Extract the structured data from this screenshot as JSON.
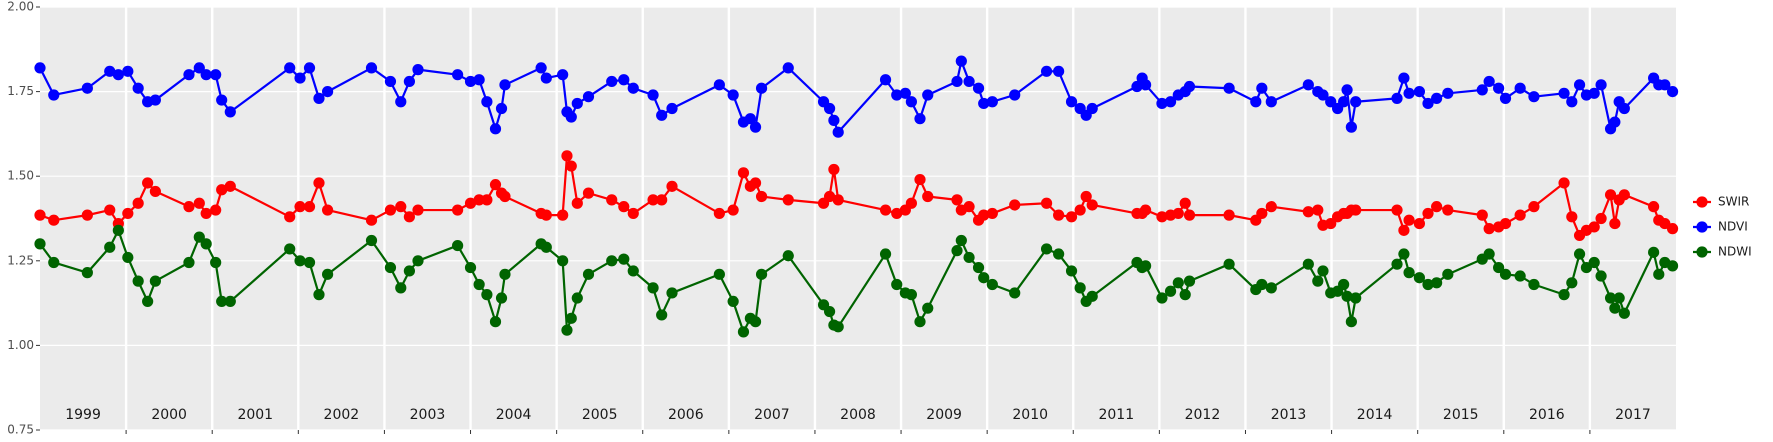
{
  "chart_data": {
    "type": "line",
    "xlim": [
      1999,
      2018
    ],
    "xticks": [
      2000,
      2001,
      2002,
      2003,
      2004,
      2005,
      2006,
      2007,
      2008,
      2009,
      2010,
      2011,
      2012,
      2013,
      2014,
      2015,
      2016,
      2017
    ],
    "categories": [
      "1999",
      "2000",
      "2001",
      "2002",
      "2003",
      "2004",
      "2005",
      "2006",
      "2007",
      "2008",
      "2009",
      "2010",
      "2011",
      "2012",
      "2013",
      "2014",
      "2015",
      "2016",
      "2017"
    ],
    "ylim": [
      0.75,
      2.0
    ],
    "yticks": [
      {
        "value": 0.75,
        "label": "0.75"
      },
      {
        "value": 1.0,
        "label": "1.00"
      },
      {
        "value": 1.25,
        "label": "1.25"
      },
      {
        "value": 1.5,
        "label": "1.50"
      },
      {
        "value": 1.75,
        "label": "1.75"
      },
      {
        "value": 2.0,
        "label": "2.00"
      }
    ],
    "grid": true,
    "legend": "right",
    "x": [
      1999.0,
      1999.16,
      1999.55,
      1999.81,
      1999.91,
      2000.02,
      2000.14,
      2000.25,
      2000.34,
      2000.73,
      2000.85,
      2000.93,
      2001.04,
      2001.11,
      2001.21,
      2001.9,
      2002.02,
      2002.13,
      2002.24,
      2002.34,
      2002.85,
      2003.07,
      2003.19,
      2003.29,
      2003.39,
      2003.85,
      2004.0,
      2004.1,
      2004.19,
      2004.29,
      2004.36,
      2004.4,
      2004.82,
      2004.88,
      2005.07,
      2005.12,
      2005.17,
      2005.24,
      2005.37,
      2005.64,
      2005.78,
      2005.89,
      2006.12,
      2006.22,
      2006.34,
      2006.89,
      2007.05,
      2007.17,
      2007.25,
      2007.31,
      2007.38,
      2007.69,
      2008.1,
      2008.17,
      2008.22,
      2008.27,
      2008.82,
      2008.95,
      2009.05,
      2009.12,
      2009.22,
      2009.31,
      2009.65,
      2009.7,
      2009.79,
      2009.9,
      2009.96,
      2010.06,
      2010.32,
      2010.69,
      2010.83,
      2010.98,
      2011.08,
      2011.15,
      2011.22,
      2011.74,
      2011.8,
      2011.84,
      2012.03,
      2012.13,
      2012.22,
      2012.3,
      2012.35,
      2012.81,
      2013.12,
      2013.19,
      2013.3,
      2013.73,
      2013.84,
      2013.9,
      2013.99,
      2014.07,
      2014.14,
      2014.18,
      2014.23,
      2014.28,
      2014.76,
      2014.84,
      2014.9,
      2015.02,
      2015.12,
      2015.22,
      2015.35,
      2015.75,
      2015.83,
      2015.94,
      2016.02,
      2016.19,
      2016.35,
      2016.7,
      2016.79,
      2016.88,
      2016.96,
      2017.05,
      2017.13,
      2017.24,
      2017.29,
      2017.34,
      2017.4,
      2017.74,
      2017.8,
      2017.87,
      2017.96
    ],
    "series": [
      {
        "name": "SWIR",
        "color": "#ff0000",
        "values": [
          1.385,
          1.37,
          1.385,
          1.4,
          1.36,
          1.39,
          1.42,
          1.48,
          1.455,
          1.41,
          1.42,
          1.39,
          1.4,
          1.46,
          1.47,
          1.38,
          1.41,
          1.41,
          1.48,
          1.4,
          1.37,
          1.4,
          1.41,
          1.38,
          1.4,
          1.4,
          1.42,
          1.43,
          1.43,
          1.475,
          1.45,
          1.44,
          1.39,
          1.385,
          1.385,
          1.56,
          1.53,
          1.42,
          1.45,
          1.43,
          1.41,
          1.39,
          1.43,
          1.43,
          1.47,
          1.39,
          1.4,
          1.51,
          1.47,
          1.48,
          1.44,
          1.43,
          1.42,
          1.44,
          1.52,
          1.43,
          1.4,
          1.39,
          1.4,
          1.42,
          1.49,
          1.44,
          1.43,
          1.4,
          1.41,
          1.37,
          1.385,
          1.39,
          1.415,
          1.42,
          1.385,
          1.38,
          1.4,
          1.44,
          1.415,
          1.39,
          1.39,
          1.4,
          1.38,
          1.385,
          1.39,
          1.42,
          1.385,
          1.385,
          1.37,
          1.39,
          1.41,
          1.395,
          1.4,
          1.355,
          1.36,
          1.38,
          1.39,
          1.39,
          1.4,
          1.4,
          1.4,
          1.34,
          1.37,
          1.36,
          1.39,
          1.41,
          1.4,
          1.385,
          1.345,
          1.35,
          1.36,
          1.385,
          1.41,
          1.48,
          1.38,
          1.325,
          1.34,
          1.35,
          1.375,
          1.445,
          1.36,
          1.43,
          1.445,
          1.41,
          1.37,
          1.36,
          1.345
        ]
      },
      {
        "name": "NDVI",
        "color": "#0000ff",
        "values": [
          1.82,
          1.74,
          1.76,
          1.81,
          1.8,
          1.81,
          1.76,
          1.72,
          1.725,
          1.8,
          1.82,
          1.8,
          1.8,
          1.725,
          1.69,
          1.82,
          1.79,
          1.82,
          1.73,
          1.75,
          1.82,
          1.78,
          1.72,
          1.78,
          1.815,
          1.8,
          1.78,
          1.785,
          1.72,
          1.64,
          1.7,
          1.77,
          1.82,
          1.79,
          1.8,
          1.69,
          1.675,
          1.715,
          1.735,
          1.78,
          1.785,
          1.76,
          1.74,
          1.68,
          1.7,
          1.77,
          1.74,
          1.66,
          1.67,
          1.645,
          1.76,
          1.82,
          1.72,
          1.7,
          1.665,
          1.63,
          1.785,
          1.74,
          1.745,
          1.72,
          1.67,
          1.74,
          1.78,
          1.84,
          1.78,
          1.76,
          1.715,
          1.72,
          1.74,
          1.81,
          1.81,
          1.72,
          1.7,
          1.68,
          1.7,
          1.765,
          1.79,
          1.77,
          1.715,
          1.72,
          1.74,
          1.75,
          1.765,
          1.76,
          1.72,
          1.76,
          1.72,
          1.77,
          1.75,
          1.74,
          1.72,
          1.7,
          1.72,
          1.755,
          1.645,
          1.72,
          1.73,
          1.79,
          1.745,
          1.75,
          1.715,
          1.73,
          1.745,
          1.755,
          1.78,
          1.76,
          1.73,
          1.76,
          1.735,
          1.745,
          1.72,
          1.77,
          1.74,
          1.745,
          1.77,
          1.64,
          1.66,
          1.72,
          1.7,
          1.79,
          1.77,
          1.77,
          1.75
        ]
      },
      {
        "name": "NDWI",
        "color": "#006400",
        "values": [
          1.3,
          1.245,
          1.215,
          1.29,
          1.34,
          1.26,
          1.19,
          1.13,
          1.19,
          1.245,
          1.32,
          1.3,
          1.245,
          1.13,
          1.13,
          1.285,
          1.25,
          1.245,
          1.15,
          1.21,
          1.31,
          1.23,
          1.17,
          1.22,
          1.25,
          1.295,
          1.23,
          1.18,
          1.15,
          1.07,
          1.14,
          1.21,
          1.3,
          1.29,
          1.25,
          1.045,
          1.08,
          1.14,
          1.21,
          1.25,
          1.255,
          1.22,
          1.17,
          1.09,
          1.155,
          1.21,
          1.13,
          1.04,
          1.08,
          1.07,
          1.21,
          1.265,
          1.12,
          1.1,
          1.06,
          1.055,
          1.27,
          1.18,
          1.155,
          1.15,
          1.07,
          1.11,
          1.28,
          1.31,
          1.26,
          1.23,
          1.2,
          1.18,
          1.155,
          1.285,
          1.27,
          1.22,
          1.17,
          1.13,
          1.145,
          1.245,
          1.23,
          1.235,
          1.14,
          1.16,
          1.185,
          1.15,
          1.19,
          1.24,
          1.165,
          1.18,
          1.17,
          1.24,
          1.19,
          1.22,
          1.155,
          1.16,
          1.18,
          1.145,
          1.07,
          1.14,
          1.24,
          1.27,
          1.215,
          1.2,
          1.18,
          1.185,
          1.21,
          1.255,
          1.27,
          1.23,
          1.21,
          1.205,
          1.18,
          1.15,
          1.185,
          1.27,
          1.23,
          1.245,
          1.205,
          1.14,
          1.11,
          1.14,
          1.095,
          1.275,
          1.21,
          1.245,
          1.235
        ]
      }
    ]
  }
}
